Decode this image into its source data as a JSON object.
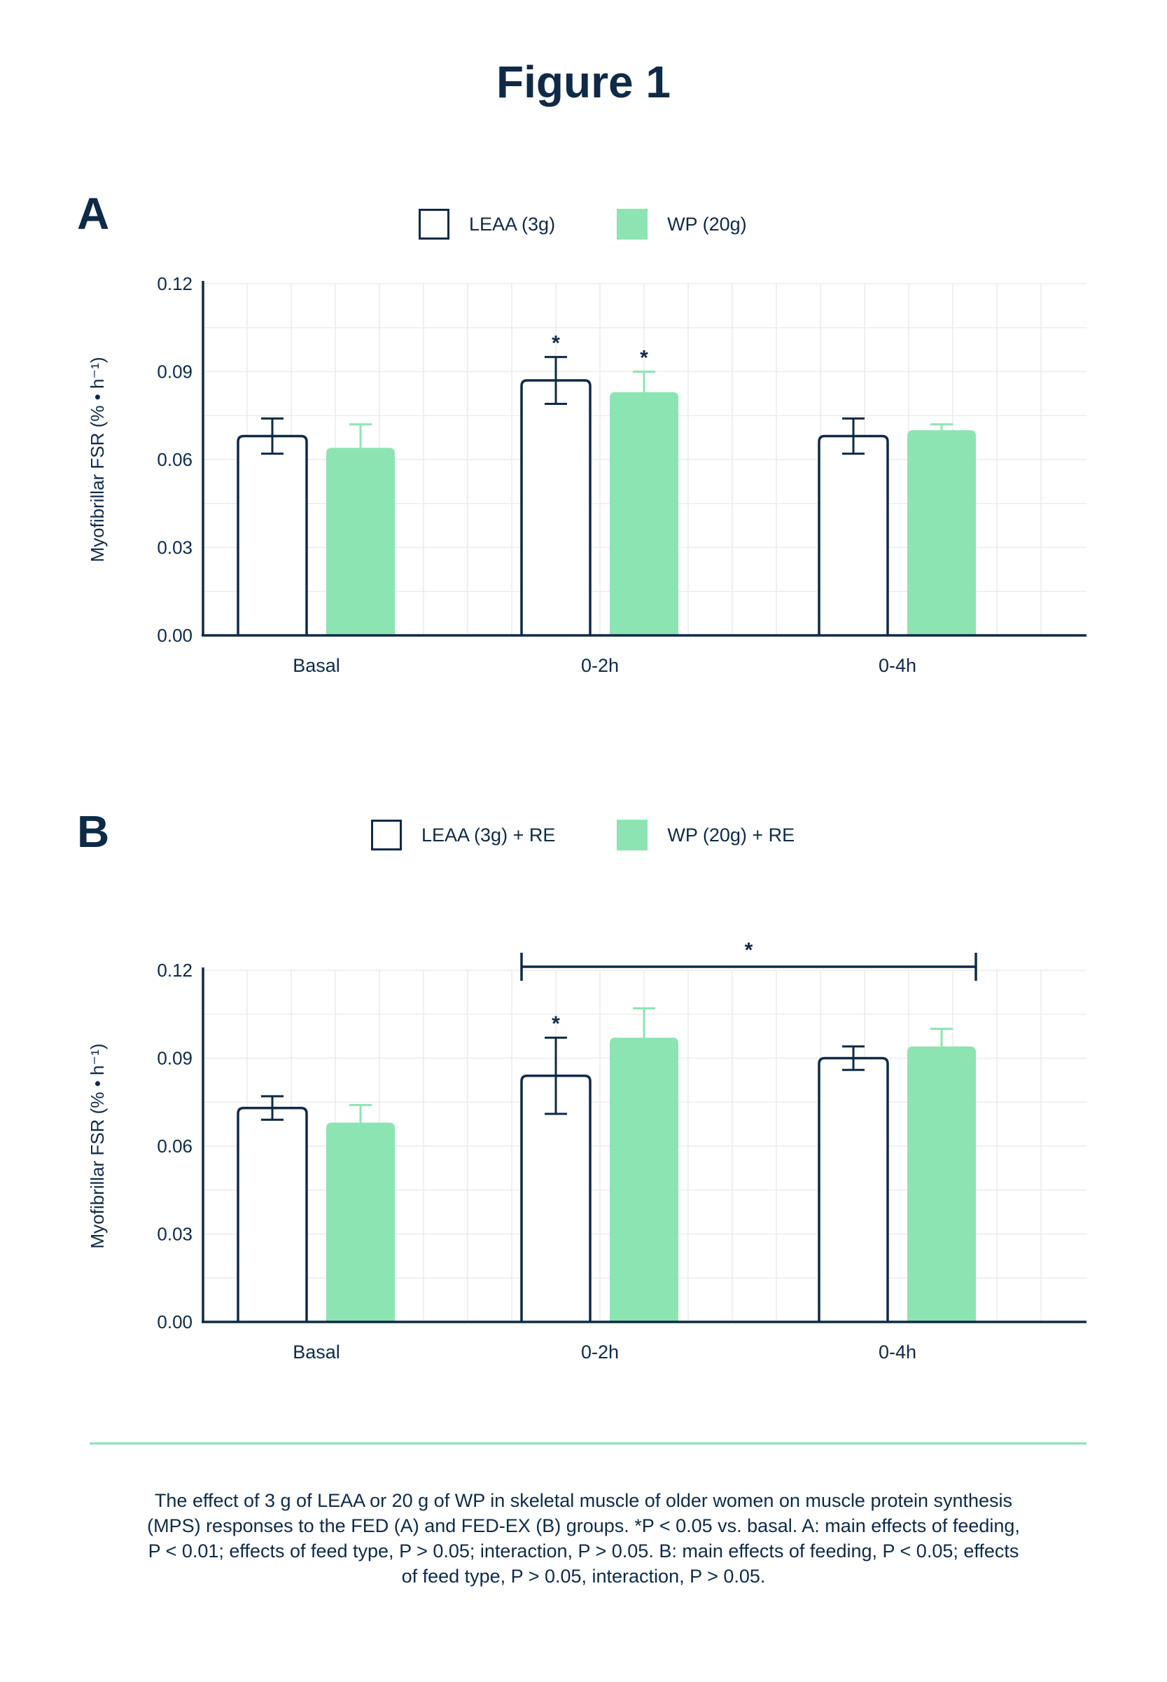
{
  "figure": {
    "title": "Figure 1",
    "caption": "The effect of 3 g of LEAA or 20 g of WP in skeletal muscle of older women on muscle protein synthesis (MPS) responses to the FED (A) and FED-EX (B) groups. *P < 0.05 vs. basal. A: main effects of feeding, P < 0.01; effects of feed type, P > 0.05; interaction, P > 0.05. B: main effects of feeding, P < 0.05; effects of feed type, P > 0.05, interaction, P > 0.05."
  },
  "colors": {
    "navy": "#0e2a47",
    "mint": "#8de4b3",
    "grid": "#ececec"
  },
  "chart_data": [
    {
      "panel": "A",
      "type": "bar",
      "ylabel": "Myofibrillar FSR (% • h⁻¹)",
      "ylim": [
        0,
        0.12
      ],
      "yticks": [
        "0.00",
        "0.03",
        "0.06",
        "0.09",
        "0.12"
      ],
      "categories": [
        "Basal",
        "0-2h",
        "0-4h"
      ],
      "grid": true,
      "legend_position": "top-center",
      "series": [
        {
          "name": "LEAA (3g)",
          "style": "outline",
          "values": [
            0.068,
            0.087,
            0.068
          ],
          "errors": [
            0.006,
            0.008,
            0.006
          ],
          "significance": [
            "",
            "*",
            ""
          ]
        },
        {
          "name": "WP (20g)",
          "style": "filled",
          "values": [
            0.064,
            0.083,
            0.07
          ],
          "errors": [
            0.008,
            0.007,
            0.002
          ],
          "significance": [
            "",
            "*",
            ""
          ]
        }
      ]
    },
    {
      "panel": "B",
      "type": "bar",
      "ylabel": "Myofibrillar FSR (% • h⁻¹)",
      "ylim": [
        0,
        0.12
      ],
      "yticks": [
        "0.00",
        "0.03",
        "0.06",
        "0.09",
        "0.12"
      ],
      "categories": [
        "Basal",
        "0-2h",
        "0-4h"
      ],
      "grid": true,
      "legend_position": "top-center",
      "bracket": {
        "from": "0-2h",
        "to": "0-4h",
        "label": "*"
      },
      "series": [
        {
          "name": "LEAA (3g) + RE",
          "style": "outline",
          "values": [
            0.073,
            0.084,
            0.09
          ],
          "errors": [
            0.004,
            0.013,
            0.004
          ],
          "significance": [
            "",
            "*",
            ""
          ]
        },
        {
          "name": "WP (20g) + RE",
          "style": "filled",
          "values": [
            0.068,
            0.097,
            0.094
          ],
          "errors": [
            0.006,
            0.01,
            0.006
          ],
          "significance": [
            "",
            "",
            ""
          ]
        }
      ]
    }
  ]
}
